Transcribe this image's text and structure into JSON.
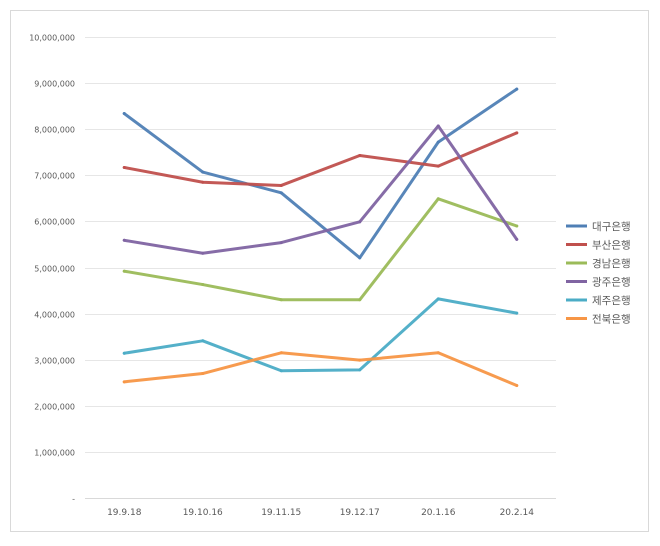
{
  "chart_data": {
    "type": "line",
    "categories": [
      "19.9.18",
      "19.10.16",
      "19.11.15",
      "19.12.17",
      "20.1.16",
      "20.2.14"
    ],
    "ylim": [
      0,
      10000000
    ],
    "yticks": [
      0,
      1000000,
      2000000,
      3000000,
      4000000,
      5000000,
      6000000,
      7000000,
      8000000,
      9000000,
      10000000
    ],
    "ytick_labels": [
      "-",
      "1,000,000",
      "2,000,000",
      "3,000,000",
      "4,000,000",
      "5,000,000",
      "6,000,000",
      "7,000,000",
      "8,000,000",
      "9,000,000",
      "10,000,000"
    ],
    "grid": true,
    "legend": "right",
    "series": [
      {
        "name": "대구은행",
        "color": "#4f7fb5",
        "values": [
          8340000,
          7070000,
          6620000,
          5210000,
          7720000,
          8870000
        ]
      },
      {
        "name": "부산은행",
        "color": "#c0504d",
        "values": [
          7170000,
          6850000,
          6780000,
          7430000,
          7200000,
          7920000
        ]
      },
      {
        "name": "경남은행",
        "color": "#9bbb59",
        "values": [
          4920000,
          4630000,
          4300000,
          4300000,
          6490000,
          5900000
        ]
      },
      {
        "name": "광주은행",
        "color": "#8064a2",
        "values": [
          5590000,
          5310000,
          5540000,
          5990000,
          8070000,
          5610000
        ]
      },
      {
        "name": "제주은행",
        "color": "#4bacc6",
        "values": [
          3140000,
          3410000,
          2760000,
          2780000,
          4320000,
          4010000
        ]
      },
      {
        "name": "전북은행",
        "color": "#f79646",
        "values": [
          2520000,
          2700000,
          3150000,
          2990000,
          3150000,
          2440000
        ]
      }
    ]
  }
}
